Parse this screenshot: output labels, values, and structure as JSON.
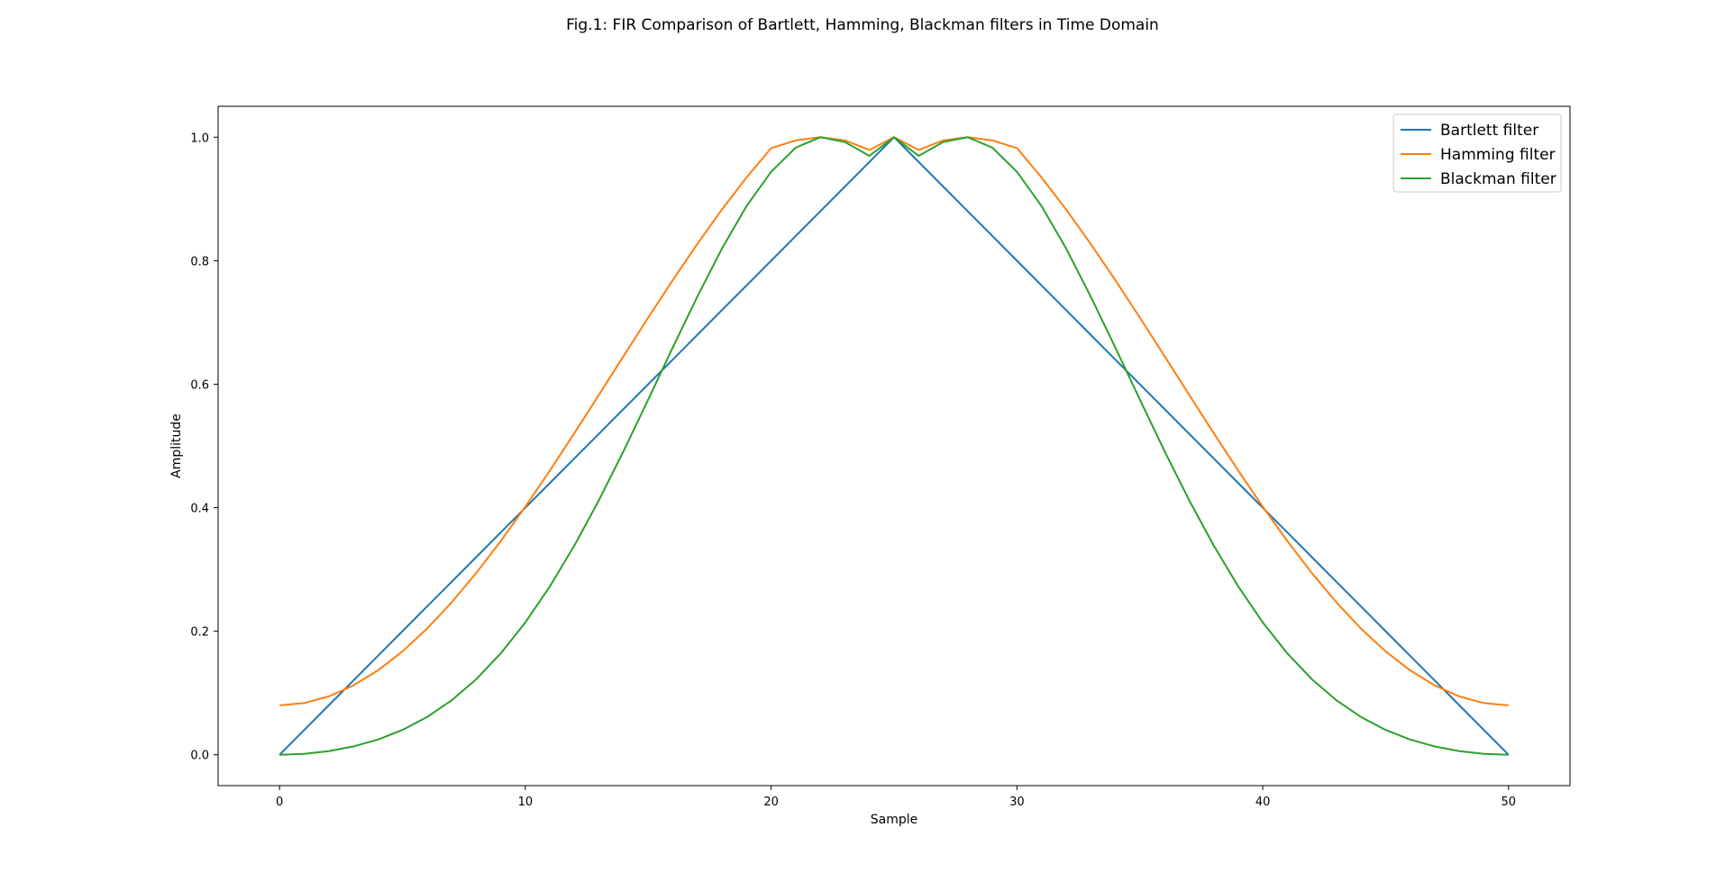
{
  "chart_data": {
    "type": "line",
    "title": "Fig.1: FIR Comparison of Bartlett, Hamming, Blackman filters in Time Domain",
    "xlabel": "Sample",
    "ylabel": "Amplitude",
    "xlim": [
      -2.5,
      52.5
    ],
    "ylim": [
      -0.05,
      1.05
    ],
    "xticks": [
      0,
      10,
      20,
      30,
      40,
      50
    ],
    "yticks": [
      0.0,
      0.2,
      0.4,
      0.6,
      0.8,
      1.0
    ],
    "xtick_labels": [
      "0",
      "10",
      "20",
      "30",
      "40",
      "50"
    ],
    "ytick_labels": [
      "0.0",
      "0.2",
      "0.4",
      "0.6",
      "0.8",
      "1.0"
    ],
    "grid": false,
    "legend_position": "top-right",
    "x": [
      0,
      1,
      2,
      3,
      4,
      5,
      6,
      7,
      8,
      9,
      10,
      11,
      12,
      13,
      14,
      15,
      16,
      17,
      18,
      19,
      20,
      21,
      22,
      23,
      24,
      25,
      26,
      27,
      28,
      29,
      30,
      31,
      32,
      33,
      34,
      35,
      36,
      37,
      38,
      39,
      40,
      41,
      42,
      43,
      44,
      45,
      46,
      47,
      48,
      49,
      50
    ],
    "series": [
      {
        "name": "Bartlett filter",
        "color": "#1f77b4",
        "values": [
          0.0,
          0.04,
          0.08,
          0.12,
          0.16,
          0.2,
          0.24,
          0.28,
          0.32,
          0.36,
          0.4,
          0.44,
          0.48,
          0.52,
          0.56,
          0.6,
          0.64,
          0.68,
          0.72,
          0.76,
          0.8,
          0.84,
          0.88,
          0.92,
          0.96,
          1.0,
          0.96,
          0.92,
          0.88,
          0.84,
          0.8,
          0.76,
          0.72,
          0.68,
          0.64,
          0.6,
          0.56,
          0.52,
          0.48,
          0.44,
          0.4,
          0.36,
          0.32,
          0.28,
          0.24,
          0.2,
          0.16,
          0.12,
          0.08,
          0.04,
          0.0
        ]
      },
      {
        "name": "Hamming filter",
        "color": "#ff7f0e",
        "values": [
          0.08,
          0.0836,
          0.0944,
          0.1121,
          0.1365,
          0.1673,
          0.2042,
          0.2467,
          0.2942,
          0.3461,
          0.4017,
          0.4603,
          0.5211,
          0.5832,
          0.6458,
          0.7079,
          0.7687,
          0.8273,
          0.8829,
          0.9348,
          0.9823,
          0.9948,
          1.0,
          0.9948,
          0.9793,
          1.0,
          0.9793,
          0.9948,
          1.0,
          0.9948,
          0.9823,
          0.9348,
          0.8829,
          0.8273,
          0.7687,
          0.7079,
          0.6458,
          0.5832,
          0.5211,
          0.4603,
          0.4017,
          0.3461,
          0.2942,
          0.2467,
          0.2042,
          0.1673,
          0.1365,
          0.1121,
          0.0944,
          0.0836,
          0.08
        ]
      },
      {
        "name": "Blackman filter",
        "color": "#2ca02c",
        "values": [
          0.0,
          0.0014,
          0.0058,
          0.0134,
          0.0245,
          0.0401,
          0.061,
          0.0881,
          0.1222,
          0.1641,
          0.2143,
          0.2727,
          0.3392,
          0.4127,
          0.492,
          0.5752,
          0.6596,
          0.7421,
          0.8198,
          0.8885,
          0.944,
          0.9831,
          1.0,
          0.9921,
          0.9698,
          1.0,
          0.9698,
          0.9921,
          1.0,
          0.9831,
          0.944,
          0.8885,
          0.8198,
          0.7421,
          0.6596,
          0.5752,
          0.492,
          0.4127,
          0.3392,
          0.2727,
          0.2143,
          0.1641,
          0.1222,
          0.0881,
          0.061,
          0.0401,
          0.0245,
          0.0134,
          0.0058,
          0.0014,
          0.0
        ]
      }
    ]
  }
}
